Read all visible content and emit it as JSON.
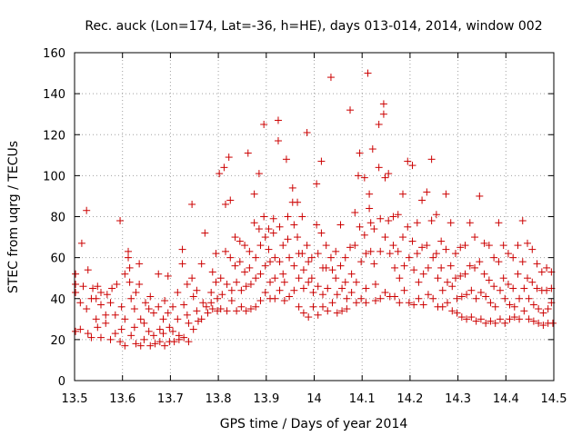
{
  "chart_data": {
    "type": "scatter",
    "title": "Rec. auck (Lon=174, Lat=-36, h=HE), days 013-014, 2014, window 002",
    "xlabel": "GPS time / Days of year 2014",
    "ylabel": "STEC from uqrg / TECUs",
    "xlim": [
      13.5,
      14.5
    ],
    "ylim": [
      0,
      160
    ],
    "xticks": [
      "13.5",
      "13.6",
      "13.7",
      "13.8",
      "13.9",
      "14",
      "14.1",
      "14.2",
      "14.3",
      "14.4",
      "14.5"
    ],
    "yticks": [
      "0",
      "20",
      "40",
      "60",
      "80",
      "100",
      "120",
      "140",
      "160"
    ],
    "grid": true,
    "marker": "+",
    "marker_color": "#cc0000",
    "points": [
      [
        13.502,
        24
      ],
      [
        13.502,
        43
      ],
      [
        13.502,
        47
      ],
      [
        13.502,
        52
      ],
      [
        13.515,
        67
      ],
      [
        13.512,
        38
      ],
      [
        13.512,
        25
      ],
      [
        13.518,
        46
      ],
      [
        13.525,
        83
      ],
      [
        13.528,
        54
      ],
      [
        13.525,
        35
      ],
      [
        13.528,
        23
      ],
      [
        13.535,
        40
      ],
      [
        13.535,
        21
      ],
      [
        13.538,
        45
      ],
      [
        13.545,
        30
      ],
      [
        13.545,
        40
      ],
      [
        13.548,
        26
      ],
      [
        13.548,
        46
      ],
      [
        13.555,
        43
      ],
      [
        13.555,
        37
      ],
      [
        13.555,
        21
      ],
      [
        13.565,
        28
      ],
      [
        13.565,
        32
      ],
      [
        13.568,
        42
      ],
      [
        13.575,
        20
      ],
      [
        13.575,
        38
      ],
      [
        13.578,
        45
      ],
      [
        13.585,
        23
      ],
      [
        13.585,
        32
      ],
      [
        13.588,
        47
      ],
      [
        13.595,
        78
      ],
      [
        13.595,
        19
      ],
      [
        13.598,
        25
      ],
      [
        13.598,
        36
      ],
      [
        13.605,
        17
      ],
      [
        13.605,
        30
      ],
      [
        13.605,
        52
      ],
      [
        13.612,
        63
      ],
      [
        13.612,
        60
      ],
      [
        13.615,
        55
      ],
      [
        13.615,
        48
      ],
      [
        13.618,
        40
      ],
      [
        13.618,
        22
      ],
      [
        13.625,
        35
      ],
      [
        13.625,
        26
      ],
      [
        13.628,
        43
      ],
      [
        13.628,
        18
      ],
      [
        13.635,
        57
      ],
      [
        13.635,
        47
      ],
      [
        13.638,
        30
      ],
      [
        13.638,
        17
      ],
      [
        13.645,
        28
      ],
      [
        13.645,
        20
      ],
      [
        13.648,
        38
      ],
      [
        13.655,
        35
      ],
      [
        13.655,
        24
      ],
      [
        13.658,
        41
      ],
      [
        13.658,
        17
      ],
      [
        13.665,
        33
      ],
      [
        13.665,
        22
      ],
      [
        13.668,
        18
      ],
      [
        13.675,
        52
      ],
      [
        13.675,
        36
      ],
      [
        13.678,
        25
      ],
      [
        13.678,
        19
      ],
      [
        13.685,
        30
      ],
      [
        13.685,
        23
      ],
      [
        13.688,
        39
      ],
      [
        13.688,
        17
      ],
      [
        13.695,
        51
      ],
      [
        13.695,
        33
      ],
      [
        13.698,
        26
      ],
      [
        13.698,
        19
      ],
      [
        13.705,
        36
      ],
      [
        13.705,
        24
      ],
      [
        13.708,
        19
      ],
      [
        13.715,
        43
      ],
      [
        13.715,
        30
      ],
      [
        13.718,
        22
      ],
      [
        13.718,
        20
      ],
      [
        13.725,
        64
      ],
      [
        13.725,
        57
      ],
      [
        13.728,
        37
      ],
      [
        13.728,
        21
      ],
      [
        13.735,
        47
      ],
      [
        13.735,
        32
      ],
      [
        13.738,
        28
      ],
      [
        13.738,
        19
      ],
      [
        13.745,
        86
      ],
      [
        13.745,
        50
      ],
      [
        13.748,
        41
      ],
      [
        13.748,
        25
      ],
      [
        13.755,
        44
      ],
      [
        13.755,
        34
      ],
      [
        13.758,
        29
      ],
      [
        13.765,
        57
      ],
      [
        13.765,
        30
      ],
      [
        13.768,
        38
      ],
      [
        13.772,
        72
      ],
      [
        13.775,
        36
      ],
      [
        13.778,
        33
      ],
      [
        13.785,
        43
      ],
      [
        13.785,
        38
      ],
      [
        13.788,
        35
      ],
      [
        13.788,
        53
      ],
      [
        13.795,
        62
      ],
      [
        13.795,
        48
      ],
      [
        13.798,
        40
      ],
      [
        13.798,
        34
      ],
      [
        13.802,
        101
      ],
      [
        13.805,
        50
      ],
      [
        13.805,
        35
      ],
      [
        13.808,
        42
      ],
      [
        13.812,
        104
      ],
      [
        13.815,
        86
      ],
      [
        13.815,
        63
      ],
      [
        13.818,
        47
      ],
      [
        13.818,
        34
      ],
      [
        13.822,
        109
      ],
      [
        13.825,
        88
      ],
      [
        13.825,
        60
      ],
      [
        13.828,
        44
      ],
      [
        13.828,
        39
      ],
      [
        13.835,
        70
      ],
      [
        13.835,
        56
      ],
      [
        13.838,
        48
      ],
      [
        13.838,
        34
      ],
      [
        13.845,
        68
      ],
      [
        13.845,
        58
      ],
      [
        13.848,
        44
      ],
      [
        13.848,
        36
      ],
      [
        13.855,
        66
      ],
      [
        13.855,
        53
      ],
      [
        13.858,
        46
      ],
      [
        13.858,
        34
      ],
      [
        13.862,
        111
      ],
      [
        13.865,
        63
      ],
      [
        13.865,
        55
      ],
      [
        13.868,
        47
      ],
      [
        13.868,
        35
      ],
      [
        13.875,
        91
      ],
      [
        13.875,
        77
      ],
      [
        13.878,
        60
      ],
      [
        13.878,
        50
      ],
      [
        13.878,
        36
      ],
      [
        13.885,
        101
      ],
      [
        13.885,
        74
      ],
      [
        13.888,
        66
      ],
      [
        13.888,
        52
      ],
      [
        13.888,
        39
      ],
      [
        13.895,
        125
      ],
      [
        13.895,
        80
      ],
      [
        13.898,
        70
      ],
      [
        13.898,
        56
      ],
      [
        13.898,
        43
      ],
      [
        13.905,
        74
      ],
      [
        13.905,
        64
      ],
      [
        13.908,
        58
      ],
      [
        13.908,
        48
      ],
      [
        13.908,
        40
      ],
      [
        13.915,
        79
      ],
      [
        13.915,
        72
      ],
      [
        13.918,
        60
      ],
      [
        13.918,
        50
      ],
      [
        13.918,
        40
      ],
      [
        13.925,
        117
      ],
      [
        13.925,
        127
      ],
      [
        13.928,
        75
      ],
      [
        13.928,
        58
      ],
      [
        13.928,
        44
      ],
      [
        13.935,
        66
      ],
      [
        13.935,
        52
      ],
      [
        13.938,
        48
      ],
      [
        13.938,
        39
      ],
      [
        13.942,
        108
      ],
      [
        13.945,
        80
      ],
      [
        13.945,
        69
      ],
      [
        13.948,
        60
      ],
      [
        13.948,
        41
      ],
      [
        13.955,
        94
      ],
      [
        13.955,
        87
      ],
      [
        13.958,
        76
      ],
      [
        13.958,
        56
      ],
      [
        13.958,
        44
      ],
      [
        13.965,
        87
      ],
      [
        13.965,
        70
      ],
      [
        13.968,
        62
      ],
      [
        13.968,
        50
      ],
      [
        13.968,
        36
      ],
      [
        13.975,
        80
      ],
      [
        13.975,
        62
      ],
      [
        13.978,
        54
      ],
      [
        13.978,
        45
      ],
      [
        13.978,
        33
      ],
      [
        13.985,
        121
      ],
      [
        13.985,
        66
      ],
      [
        13.988,
        58
      ],
      [
        13.988,
        48
      ],
      [
        13.988,
        31
      ],
      [
        13.995,
        60
      ],
      [
        13.995,
        50
      ],
      [
        13.998,
        43
      ],
      [
        13.998,
        36
      ],
      [
        14.005,
        96
      ],
      [
        14.005,
        76
      ],
      [
        14.008,
        62
      ],
      [
        14.008,
        46
      ],
      [
        14.008,
        32
      ],
      [
        14.015,
        107
      ],
      [
        14.015,
        72
      ],
      [
        14.018,
        55
      ],
      [
        14.018,
        42
      ],
      [
        14.018,
        36
      ],
      [
        14.025,
        66
      ],
      [
        14.025,
        55
      ],
      [
        14.028,
        45
      ],
      [
        14.028,
        34
      ],
      [
        14.035,
        148
      ],
      [
        14.035,
        60
      ],
      [
        14.038,
        54
      ],
      [
        14.038,
        38
      ],
      [
        14.045,
        63
      ],
      [
        14.045,
        50
      ],
      [
        14.048,
        42
      ],
      [
        14.048,
        33
      ],
      [
        14.055,
        76
      ],
      [
        14.055,
        56
      ],
      [
        14.058,
        45
      ],
      [
        14.058,
        34
      ],
      [
        14.065,
        60
      ],
      [
        14.065,
        48
      ],
      [
        14.068,
        40
      ],
      [
        14.068,
        35
      ],
      [
        14.075,
        132
      ],
      [
        14.075,
        65
      ],
      [
        14.078,
        52
      ],
      [
        14.078,
        43
      ],
      [
        14.085,
        82
      ],
      [
        14.085,
        66
      ],
      [
        14.088,
        48
      ],
      [
        14.088,
        38
      ],
      [
        14.092,
        100
      ],
      [
        14.095,
        111
      ],
      [
        14.095,
        75
      ],
      [
        14.098,
        58
      ],
      [
        14.098,
        40
      ],
      [
        14.105,
        99
      ],
      [
        14.105,
        71
      ],
      [
        14.108,
        62
      ],
      [
        14.108,
        45
      ],
      [
        14.108,
        38
      ],
      [
        14.112,
        150
      ],
      [
        14.115,
        91
      ],
      [
        14.115,
        84
      ],
      [
        14.118,
        77
      ],
      [
        14.118,
        63
      ],
      [
        14.122,
        113
      ],
      [
        14.125,
        74
      ],
      [
        14.125,
        57
      ],
      [
        14.128,
        47
      ],
      [
        14.128,
        39
      ],
      [
        14.135,
        125
      ],
      [
        14.135,
        104
      ],
      [
        14.138,
        79
      ],
      [
        14.138,
        63
      ],
      [
        14.138,
        40
      ],
      [
        14.145,
        135
      ],
      [
        14.145,
        130
      ],
      [
        14.148,
        99
      ],
      [
        14.148,
        70
      ],
      [
        14.148,
        43
      ],
      [
        14.155,
        101
      ],
      [
        14.155,
        78
      ],
      [
        14.158,
        62
      ],
      [
        14.158,
        41
      ],
      [
        14.165,
        80
      ],
      [
        14.165,
        66
      ],
      [
        14.168,
        55
      ],
      [
        14.168,
        41
      ],
      [
        14.175,
        81
      ],
      [
        14.175,
        63
      ],
      [
        14.178,
        50
      ],
      [
        14.178,
        38
      ],
      [
        14.185,
        91
      ],
      [
        14.185,
        70
      ],
      [
        14.188,
        56
      ],
      [
        14.188,
        44
      ],
      [
        14.195,
        107
      ],
      [
        14.195,
        75
      ],
      [
        14.198,
        60
      ],
      [
        14.198,
        38
      ],
      [
        14.205,
        105
      ],
      [
        14.205,
        68
      ],
      [
        14.208,
        54
      ],
      [
        14.208,
        37
      ],
      [
        14.215,
        77
      ],
      [
        14.215,
        62
      ],
      [
        14.218,
        48
      ],
      [
        14.218,
        40
      ],
      [
        14.225,
        88
      ],
      [
        14.225,
        65
      ],
      [
        14.228,
        52
      ],
      [
        14.228,
        37
      ],
      [
        14.235,
        92
      ],
      [
        14.235,
        66
      ],
      [
        14.238,
        55
      ],
      [
        14.238,
        42
      ],
      [
        14.245,
        108
      ],
      [
        14.245,
        78
      ],
      [
        14.248,
        60
      ],
      [
        14.248,
        40
      ],
      [
        14.255,
        81
      ],
      [
        14.255,
        62
      ],
      [
        14.258,
        50
      ],
      [
        14.258,
        36
      ],
      [
        14.265,
        68
      ],
      [
        14.265,
        55
      ],
      [
        14.268,
        44
      ],
      [
        14.268,
        36
      ],
      [
        14.275,
        91
      ],
      [
        14.275,
        64
      ],
      [
        14.278,
        48
      ],
      [
        14.278,
        38
      ],
      [
        14.285,
        77
      ],
      [
        14.285,
        56
      ],
      [
        14.288,
        46
      ],
      [
        14.288,
        34
      ],
      [
        14.295,
        62
      ],
      [
        14.295,
        50
      ],
      [
        14.298,
        40
      ],
      [
        14.298,
        33
      ],
      [
        14.305,
        65
      ],
      [
        14.305,
        51
      ],
      [
        14.308,
        41
      ],
      [
        14.308,
        31
      ],
      [
        14.315,
        66
      ],
      [
        14.315,
        52
      ],
      [
        14.318,
        42
      ],
      [
        14.318,
        30
      ],
      [
        14.325,
        77
      ],
      [
        14.325,
        56
      ],
      [
        14.328,
        44
      ],
      [
        14.328,
        31
      ],
      [
        14.335,
        70
      ],
      [
        14.335,
        55
      ],
      [
        14.338,
        40
      ],
      [
        14.338,
        29
      ],
      [
        14.345,
        90
      ],
      [
        14.345,
        58
      ],
      [
        14.348,
        43
      ],
      [
        14.348,
        30
      ],
      [
        14.355,
        67
      ],
      [
        14.355,
        52
      ],
      [
        14.358,
        41
      ],
      [
        14.358,
        28
      ],
      [
        14.365,
        66
      ],
      [
        14.365,
        49
      ],
      [
        14.368,
        38
      ],
      [
        14.368,
        29
      ],
      [
        14.375,
        60
      ],
      [
        14.375,
        46
      ],
      [
        14.378,
        36
      ],
      [
        14.378,
        28
      ],
      [
        14.385,
        77
      ],
      [
        14.385,
        58
      ],
      [
        14.388,
        44
      ],
      [
        14.388,
        30
      ],
      [
        14.395,
        66
      ],
      [
        14.395,
        50
      ],
      [
        14.398,
        40
      ],
      [
        14.398,
        28
      ],
      [
        14.405,
        62
      ],
      [
        14.405,
        47
      ],
      [
        14.408,
        37
      ],
      [
        14.408,
        30
      ],
      [
        14.415,
        60
      ],
      [
        14.415,
        45
      ],
      [
        14.418,
        36
      ],
      [
        14.418,
        31
      ],
      [
        14.425,
        66
      ],
      [
        14.425,
        52
      ],
      [
        14.428,
        40
      ],
      [
        14.428,
        30
      ],
      [
        14.435,
        78
      ],
      [
        14.435,
        58
      ],
      [
        14.438,
        45
      ],
      [
        14.438,
        34
      ],
      [
        14.445,
        67
      ],
      [
        14.445,
        50
      ],
      [
        14.448,
        40
      ],
      [
        14.448,
        30
      ],
      [
        14.455,
        64
      ],
      [
        14.455,
        48
      ],
      [
        14.458,
        37
      ],
      [
        14.458,
        29
      ],
      [
        14.465,
        57
      ],
      [
        14.465,
        45
      ],
      [
        14.468,
        35
      ],
      [
        14.468,
        28
      ],
      [
        14.475,
        53
      ],
      [
        14.475,
        44
      ],
      [
        14.478,
        33
      ],
      [
        14.478,
        27
      ],
      [
        14.485,
        55
      ],
      [
        14.485,
        44
      ],
      [
        14.488,
        35
      ],
      [
        14.488,
        28
      ],
      [
        14.495,
        53
      ],
      [
        14.495,
        45
      ],
      [
        14.495,
        38
      ],
      [
        14.498,
        28
      ]
    ]
  }
}
